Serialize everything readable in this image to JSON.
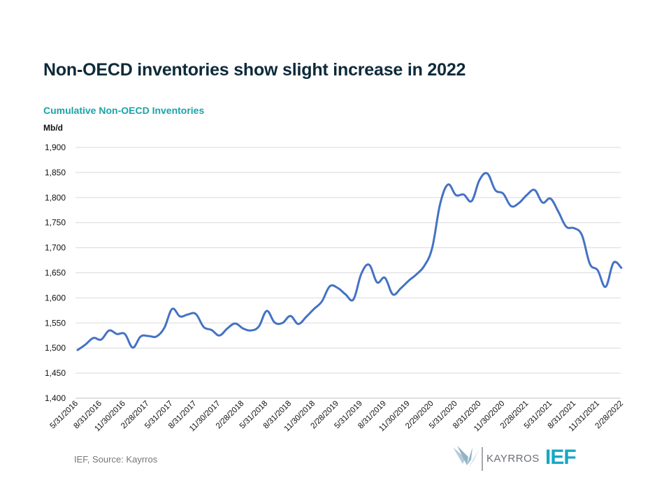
{
  "header": {
    "title": "Non-OECD inventories show slight increase in 2022"
  },
  "chart_data": {
    "type": "line",
    "title": "Cumulative Non-OECD Inventories",
    "ylabel": "Mb/d",
    "xlabel": "",
    "ylim": [
      1400,
      1900
    ],
    "y_ticks": [
      1400,
      1450,
      1500,
      1550,
      1600,
      1650,
      1700,
      1750,
      1800,
      1850,
      1900
    ],
    "y_tick_labels": [
      "1,400",
      "1,450",
      "1,500",
      "1,550",
      "1,600",
      "1,650",
      "1,700",
      "1,750",
      "1,800",
      "1,850",
      "1,900"
    ],
    "x_tick_labels": [
      "5/31/2016",
      "8/31/2016",
      "11/30/2016",
      "2/28/2017",
      "5/31/2017",
      "8/31/2017",
      "11/30/2017",
      "2/28/2018",
      "5/31/2018",
      "8/31/2018",
      "11/30/2018",
      "2/28/2019",
      "5/31/2019",
      "8/31/2019",
      "11/30/2019",
      "2/29/2020",
      "5/31/2020",
      "8/31/2020",
      "11/30/2020",
      "2/28/2021",
      "5/31/2021",
      "8/31/2021",
      "11/31/2021",
      "2/28/2022"
    ],
    "grid": true,
    "color": "#4472c4",
    "series": [
      {
        "name": "Cumulative Non-OECD Inventories",
        "values": [
          1496,
          1507,
          1520,
          1517,
          1535,
          1528,
          1528,
          1501,
          1523,
          1524,
          1523,
          1540,
          1578,
          1563,
          1567,
          1568,
          1542,
          1536,
          1525,
          1539,
          1549,
          1539,
          1535,
          1543,
          1574,
          1551,
          1550,
          1564,
          1548,
          1562,
          1578,
          1593,
          1623,
          1620,
          1607,
          1597,
          1648,
          1666,
          1631,
          1640,
          1607,
          1619,
          1634,
          1647,
          1664,
          1700,
          1787,
          1826,
          1805,
          1806,
          1793,
          1835,
          1848,
          1815,
          1808,
          1783,
          1789,
          1805,
          1815,
          1790,
          1798,
          1772,
          1742,
          1739,
          1725,
          1668,
          1655,
          1622,
          1670,
          1660
        ]
      }
    ]
  },
  "footer": {
    "source": "IEF, Source: Kayrros",
    "logo_kayrros": "KAYRROS",
    "logo_ief": "IEF"
  }
}
